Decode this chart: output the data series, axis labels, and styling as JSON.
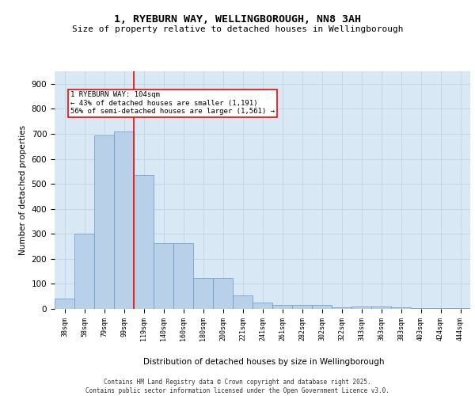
{
  "title_line1": "1, RYEBURN WAY, WELLINGBOROUGH, NN8 3AH",
  "title_line2": "Size of property relative to detached houses in Wellingborough",
  "xlabel": "Distribution of detached houses by size in Wellingborough",
  "ylabel": "Number of detached properties",
  "categories": [
    "38sqm",
    "58sqm",
    "79sqm",
    "99sqm",
    "119sqm",
    "140sqm",
    "160sqm",
    "180sqm",
    "200sqm",
    "221sqm",
    "241sqm",
    "261sqm",
    "282sqm",
    "302sqm",
    "322sqm",
    "343sqm",
    "363sqm",
    "383sqm",
    "403sqm",
    "424sqm",
    "444sqm"
  ],
  "values": [
    42,
    300,
    695,
    710,
    535,
    263,
    263,
    123,
    123,
    55,
    25,
    15,
    15,
    15,
    5,
    10,
    10,
    5,
    3,
    3,
    2
  ],
  "bar_color": "#b8d0e8",
  "bar_edge_color": "#6699cc",
  "grid_color": "#c0d4e8",
  "background_color": "#d8e8f4",
  "vline_x": 3.5,
  "vline_color": "red",
  "annotation_text": "1 RYEBURN WAY: 104sqm\n← 43% of detached houses are smaller (1,191)\n56% of semi-detached houses are larger (1,561) →",
  "annotation_box_color": "white",
  "annotation_box_edge": "red",
  "footer": "Contains HM Land Registry data © Crown copyright and database right 2025.\nContains public sector information licensed under the Open Government Licence v3.0.",
  "ylim": [
    0,
    950
  ],
  "yticks": [
    0,
    100,
    200,
    300,
    400,
    500,
    600,
    700,
    800,
    900
  ]
}
